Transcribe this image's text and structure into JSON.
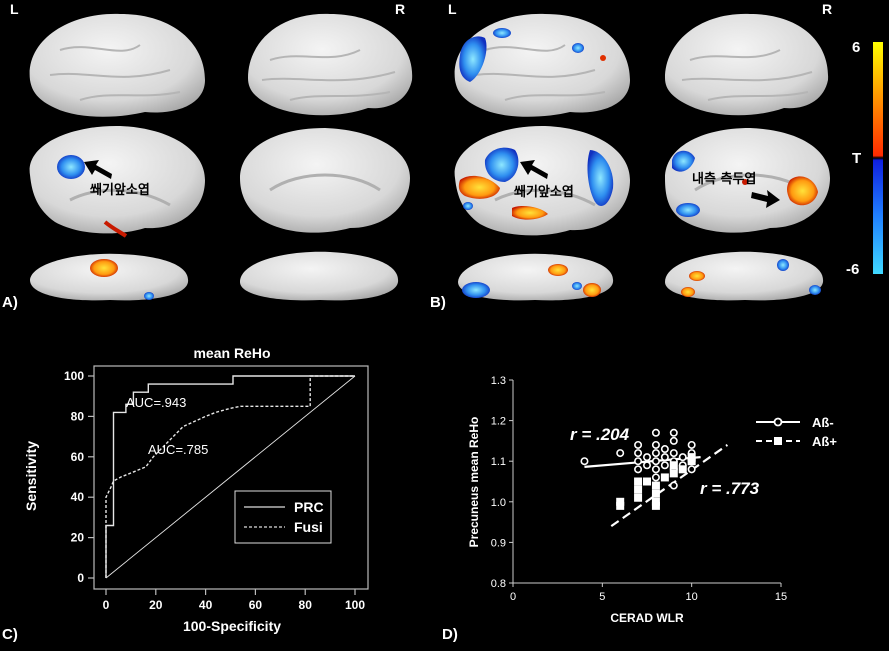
{
  "panels": {
    "A": {
      "label": "A)",
      "hemi_left": "L",
      "hemi_right": "R",
      "annotation": "쐐기앞소엽"
    },
    "B": {
      "label": "B)",
      "hemi_left": "L",
      "hemi_right": "R",
      "annotation_left": "쐐기앞소엽",
      "annotation_right": "내측 측두엽"
    },
    "C": {
      "label": "C)"
    },
    "D": {
      "label": "D)"
    }
  },
  "colorbar": {
    "top_label": "6",
    "mid_label": "T",
    "bottom_label": "-6",
    "colors": {
      "top": "#ffff00",
      "upper_mid": "#ff2a00",
      "lower_mid": "#1020e0",
      "bottom": "#40d8ff"
    }
  },
  "chart_data": [
    {
      "type": "line",
      "title": "mean ReHo",
      "xlabel": "100-Specificity",
      "ylabel": "Sensitivity",
      "xlim": [
        0,
        100
      ],
      "ylim": [
        0,
        100
      ],
      "xticks": [
        "0",
        "20",
        "40",
        "60",
        "80",
        "100"
      ],
      "yticks": [
        "0",
        "20",
        "40",
        "60",
        "80",
        "100"
      ],
      "legend_position": "bottom-right",
      "annotations": [
        "AUC=.943",
        "AUC=.785"
      ],
      "series": [
        {
          "name": "PRC",
          "style": "solid",
          "points": [
            [
              0,
              0
            ],
            [
              0,
              26
            ],
            [
              3,
              26
            ],
            [
              3,
              82
            ],
            [
              8,
              82
            ],
            [
              8,
              86
            ],
            [
              11,
              86
            ],
            [
              11,
              92
            ],
            [
              17,
              92
            ],
            [
              17,
              96
            ],
            [
              51,
              96
            ],
            [
              51,
              100
            ],
            [
              100,
              100
            ]
          ]
        },
        {
          "name": "Fusi",
          "style": "dashed",
          "points": [
            [
              0,
              0
            ],
            [
              0,
              40
            ],
            [
              2,
              45
            ],
            [
              3,
              48
            ],
            [
              6,
              50
            ],
            [
              10,
              52
            ],
            [
              16,
              55
            ],
            [
              19,
              60
            ],
            [
              27,
              70
            ],
            [
              31,
              75
            ],
            [
              40,
              80
            ],
            [
              44,
              82
            ],
            [
              50,
              84
            ],
            [
              54,
              85
            ],
            [
              82,
              85
            ],
            [
              82,
              100
            ],
            [
              100,
              100
            ]
          ]
        },
        {
          "name": "",
          "style": "reference",
          "points": [
            [
              0,
              0
            ],
            [
              100,
              100
            ]
          ]
        }
      ]
    },
    {
      "type": "scatter",
      "xlabel": "CERAD WLR",
      "ylabel": "Precuneus mean ReHo",
      "xlim": [
        0,
        15
      ],
      "ylim": [
        0.8,
        1.3
      ],
      "xticks": [
        "0",
        "5",
        "10",
        "15"
      ],
      "yticks": [
        "0.8",
        "0.9",
        "1.0",
        "1.1",
        "1.2",
        "1.3"
      ],
      "legend_position": "right",
      "annotations": [
        "r = .204",
        "r = .773"
      ],
      "series": [
        {
          "name": "Aß-",
          "marker": "circle",
          "fit": [
            [
              4,
              1.086
            ],
            [
              10.5,
              1.11
            ]
          ],
          "points": [
            [
              4,
              1.1
            ],
            [
              6,
              1.12
            ],
            [
              7,
              1.08
            ],
            [
              7,
              1.1
            ],
            [
              7,
              1.12
            ],
            [
              7,
              1.14
            ],
            [
              7.5,
              1.09
            ],
            [
              7.5,
              1.11
            ],
            [
              8,
              1.06
            ],
            [
              8,
              1.08
            ],
            [
              8,
              1.1
            ],
            [
              8,
              1.12
            ],
            [
              8,
              1.14
            ],
            [
              8,
              1.17
            ],
            [
              8.5,
              1.09
            ],
            [
              8.5,
              1.11
            ],
            [
              8.5,
              1.13
            ],
            [
              9,
              1.04
            ],
            [
              9,
              1.08
            ],
            [
              9,
              1.1
            ],
            [
              9,
              1.12
            ],
            [
              9,
              1.15
            ],
            [
              9,
              1.17
            ],
            [
              9.5,
              1.09
            ],
            [
              9.5,
              1.11
            ],
            [
              10,
              1.08
            ],
            [
              10,
              1.1
            ],
            [
              10,
              1.12
            ],
            [
              10,
              1.14
            ]
          ]
        },
        {
          "name": "Aß+",
          "marker": "square",
          "fit": [
            [
              5.5,
              0.94
            ],
            [
              12,
              1.14
            ]
          ],
          "points": [
            [
              6,
              0.99
            ],
            [
              6,
              1.0
            ],
            [
              7,
              1.01
            ],
            [
              7,
              1.03
            ],
            [
              7,
              1.05
            ],
            [
              7.5,
              1.05
            ],
            [
              8,
              0.99
            ],
            [
              8,
              1.0
            ],
            [
              8,
              1.02
            ],
            [
              8,
              1.04
            ],
            [
              8.5,
              1.06
            ],
            [
              9,
              1.07
            ],
            [
              9,
              1.09
            ],
            [
              9.5,
              1.08
            ],
            [
              10,
              1.1
            ],
            [
              10,
              1.11
            ]
          ]
        }
      ]
    }
  ]
}
